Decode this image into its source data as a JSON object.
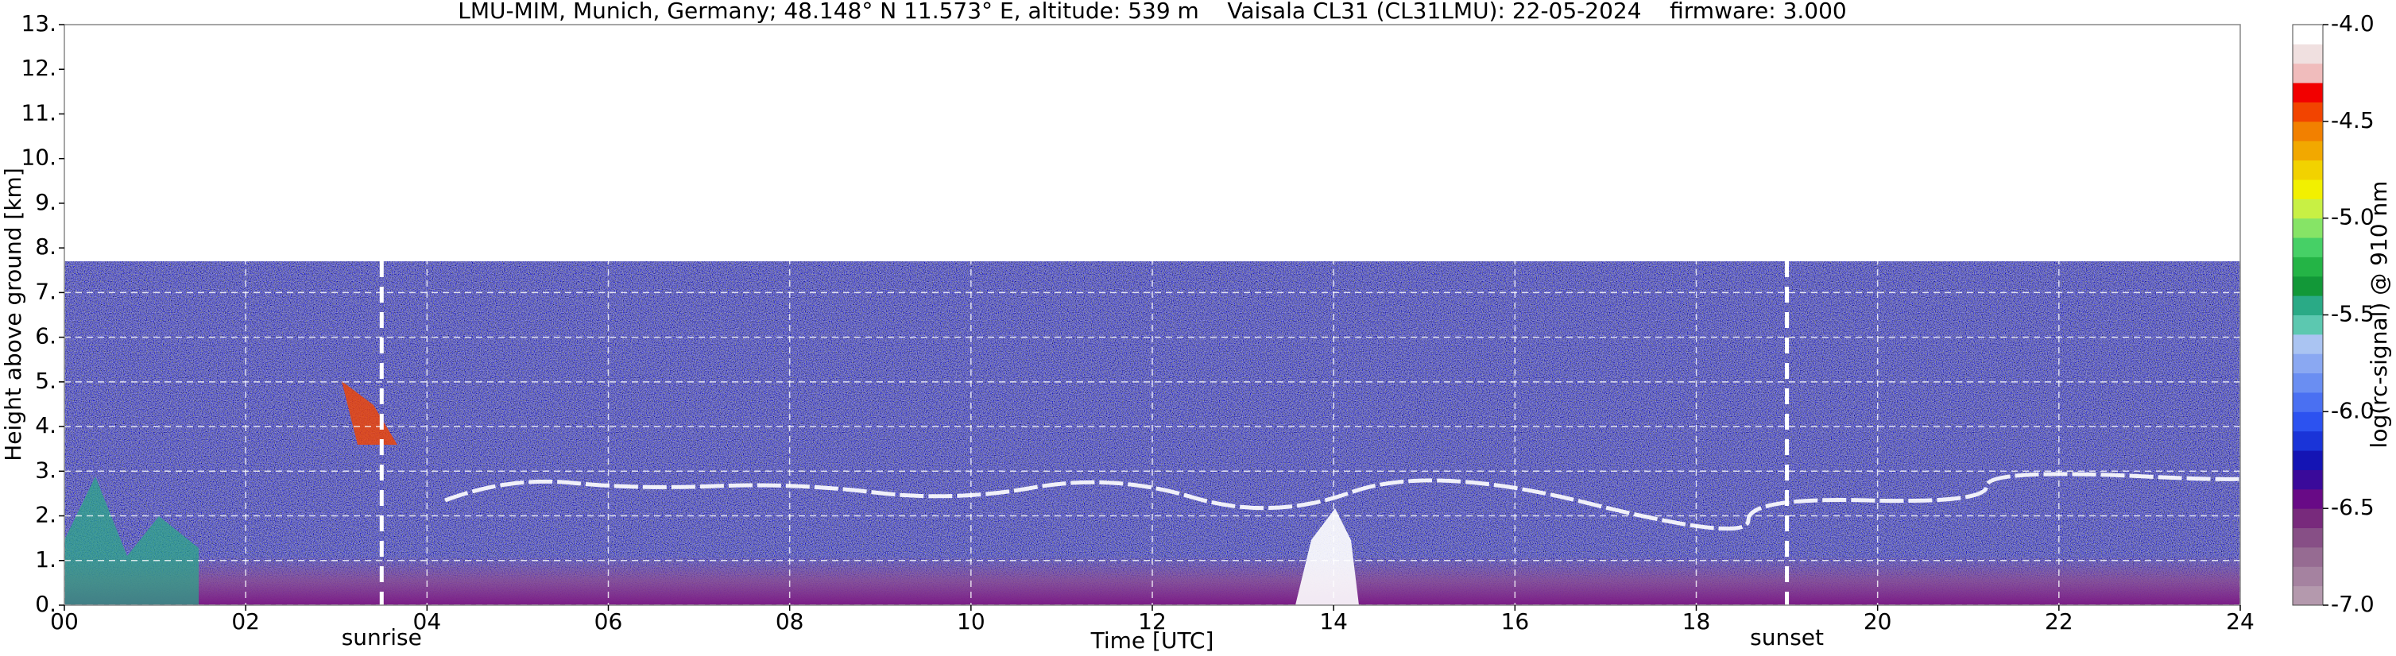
{
  "chart_data": {
    "type": "heatmap",
    "title": "LMU-MIM, Munich, Germany; 48.148° N 11.573° E, altitude: 539 m    Vaisala CL31 (CL31LMU): 22-05-2024    firmware: 3.000",
    "xlabel": "Time [UTC]",
    "ylabel": "Height above ground [km]",
    "xlim": [
      0,
      24
    ],
    "xticks": [
      {
        "value": 0,
        "label": "00"
      },
      {
        "value": 2,
        "label": "02"
      },
      {
        "value": 4,
        "label": "04"
      },
      {
        "value": 6,
        "label": "06"
      },
      {
        "value": 8,
        "label": "08"
      },
      {
        "value": 10,
        "label": "10"
      },
      {
        "value": 12,
        "label": "12"
      },
      {
        "value": 14,
        "label": "14"
      },
      {
        "value": 16,
        "label": "16"
      },
      {
        "value": 18,
        "label": "18"
      },
      {
        "value": 20,
        "label": "20"
      },
      {
        "value": 22,
        "label": "22"
      },
      {
        "value": 24,
        "label": "24"
      }
    ],
    "ylim": [
      0,
      13
    ],
    "yticks": [
      {
        "value": 0,
        "label": "0."
      },
      {
        "value": 1,
        "label": "1."
      },
      {
        "value": 2,
        "label": "2."
      },
      {
        "value": 3,
        "label": "3."
      },
      {
        "value": 4,
        "label": "4."
      },
      {
        "value": 5,
        "label": "5."
      },
      {
        "value": 6,
        "label": "6."
      },
      {
        "value": 7,
        "label": "7."
      },
      {
        "value": 8,
        "label": "8."
      },
      {
        "value": 9,
        "label": "9."
      },
      {
        "value": 10,
        "label": "10."
      },
      {
        "value": 11,
        "label": "11."
      },
      {
        "value": 12,
        "label": "12."
      },
      {
        "value": 13,
        "label": "13."
      }
    ],
    "grid": true,
    "annotations": [
      {
        "label": "sunrise",
        "x": 3.5
      },
      {
        "label": "sunset",
        "x": 19.0
      }
    ],
    "colorbar": {
      "label": "log(rc-signal) @ 910 nm",
      "lim": [
        -7,
        -4
      ],
      "ticks": [
        {
          "value": -7,
          "label": "-7.0"
        },
        -6.5,
        {
          "value": -6,
          "label": "-6.0"
        },
        -5.5,
        {
          "value": -5,
          "label": "-5.0"
        },
        -4.5,
        {
          "value": -4,
          "label": "-4.0"
        }
      ],
      "colors": [
        "#b499ad",
        "#a582a0",
        "#966b92",
        "#874f86",
        "#782a7c",
        "#680a86",
        "#3a0a9a",
        "#1414b4",
        "#1a34d8",
        "#2c52f0",
        "#4a70f2",
        "#6a8ef2",
        "#8aa8f2",
        "#aac4f2",
        "#5cc8b0",
        "#2aaa86",
        "#129838",
        "#24b446",
        "#46d066",
        "#86e466",
        "#c8f044",
        "#f2f000",
        "#f2d200",
        "#f2a800",
        "#f28000",
        "#f24400",
        "#f20000",
        "#f0bcbc",
        "#f0e0e0",
        "#ffffff"
      ]
    }
  }
}
